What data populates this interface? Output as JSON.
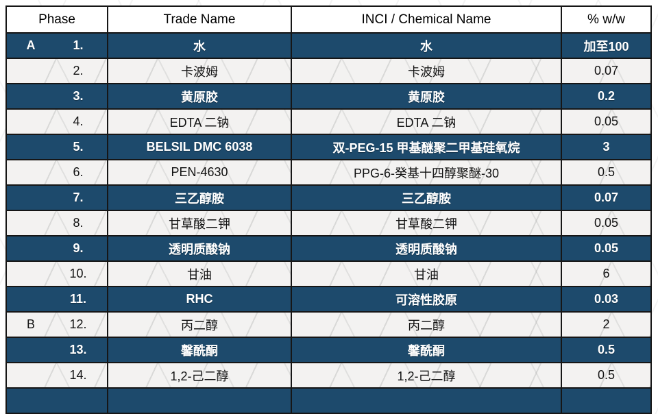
{
  "colors": {
    "dark_row_bg": "#1d4a6c",
    "light_row_bg": "#f3f2f1",
    "header_bg": "#ffffff",
    "border": "#161616",
    "dark_row_text": "#ffffff",
    "light_row_text": "#121212"
  },
  "table": {
    "columns": [
      "Phase",
      "Trade Name",
      "INCI / Chemical Name",
      "% w/w"
    ],
    "rows": [
      {
        "phase": "A",
        "no": "1.",
        "trade": "水",
        "inci": "水",
        "pct": "加至100"
      },
      {
        "phase": "",
        "no": "2.",
        "trade": "卡波姆",
        "inci": "卡波姆",
        "pct": "0.07"
      },
      {
        "phase": "",
        "no": "3.",
        "trade": "黄原胶",
        "inci": "黄原胶",
        "pct": "0.2"
      },
      {
        "phase": "",
        "no": "4.",
        "trade": "EDTA 二钠",
        "inci": "EDTA 二钠",
        "pct": "0.05"
      },
      {
        "phase": "",
        "no": "5.",
        "trade": "BELSIL DMC 6038",
        "inci": "双-PEG-15 甲基醚聚二甲基硅氧烷",
        "pct": "3"
      },
      {
        "phase": "",
        "no": "6.",
        "trade": "PEN-4630",
        "inci": "PPG-6-癸基十四醇聚醚-30",
        "pct": "0.5"
      },
      {
        "phase": "",
        "no": "7.",
        "trade": "三乙醇胺",
        "inci": "三乙醇胺",
        "pct": "0.07"
      },
      {
        "phase": "",
        "no": "8.",
        "trade": "甘草酸二钾",
        "inci": "甘草酸二钾",
        "pct": "0.05"
      },
      {
        "phase": "",
        "no": "9.",
        "trade": "透明质酸钠",
        "inci": "透明质酸钠",
        "pct": "0.05"
      },
      {
        "phase": "",
        "no": "10.",
        "trade": "甘油",
        "inci": "甘油",
        "pct": "6"
      },
      {
        "phase": "",
        "no": "11.",
        "trade": "RHC",
        "inci": "可溶性胶原",
        "pct": "0.03"
      },
      {
        "phase": "B",
        "no": "12.",
        "trade": "丙二醇",
        "inci": "丙二醇",
        "pct": "2"
      },
      {
        "phase": "",
        "no": "13.",
        "trade": "馨酰酮",
        "inci": "馨酰酮",
        "pct": "0.5"
      },
      {
        "phase": "",
        "no": "14.",
        "trade": "1,2-己二醇",
        "inci": "1,2-己二醇",
        "pct": "0.5"
      },
      {
        "phase": "",
        "no": "",
        "trade": "",
        "inci": "",
        "pct": ""
      }
    ]
  }
}
